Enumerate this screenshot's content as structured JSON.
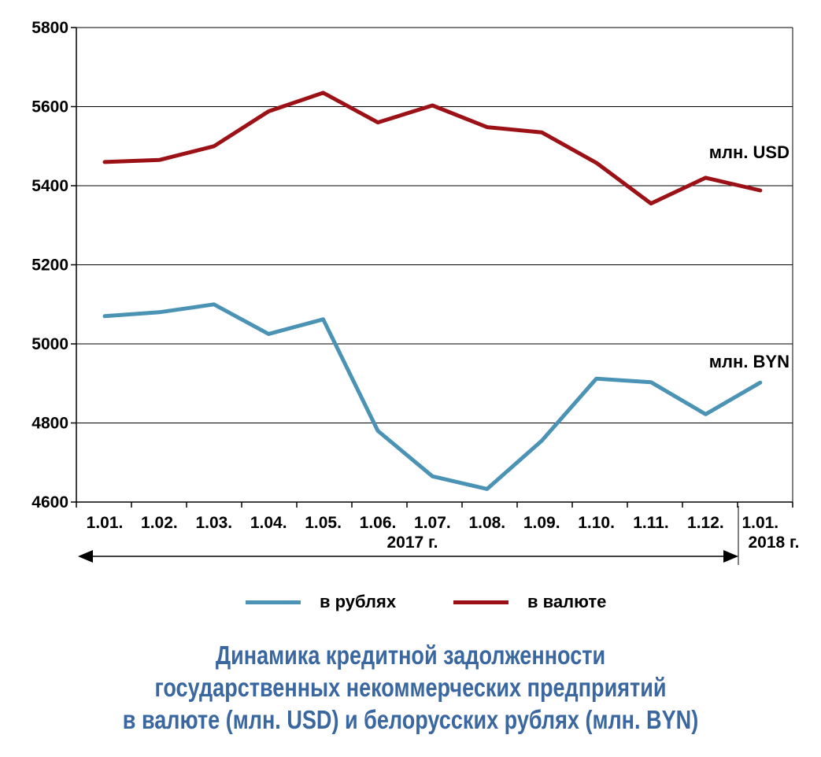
{
  "chart_data": {
    "type": "line",
    "categories": [
      "1.01.",
      "1.02.",
      "1.03.",
      "1.04.",
      "1.05.",
      "1.06.",
      "1.07.",
      "1.08.",
      "1.09.",
      "1.10.",
      "1.11.",
      "1.12.",
      "1.01."
    ],
    "year_labels": [
      "2017 г.",
      "2018 г."
    ],
    "series": [
      {
        "name": "в рублях",
        "tag": "млн. BYN",
        "color": "#4a93b4",
        "values": [
          5070,
          5080,
          5100,
          5025,
          5062,
          4780,
          4665,
          4633,
          4755,
          4912,
          4903,
          4822,
          4902
        ]
      },
      {
        "name": "в валюте",
        "tag": "млн. USD",
        "color": "#9b1116",
        "values": [
          5460,
          5465,
          5500,
          5588,
          5635,
          5560,
          5603,
          5548,
          5535,
          5458,
          5355,
          5420,
          5388
        ]
      }
    ],
    "yticks": [
      "5800",
      "5600",
      "5400",
      "5200",
      "5000",
      "4800",
      "4600"
    ],
    "ylim": [
      4600,
      5800
    ],
    "grid": true,
    "legend_position": "bottom",
    "title_lines": [
      "Динамика кредитной задолженности",
      "государственных некоммерческих предприятий",
      "в валюте (млн. USD) и белорусских рублях (млн. BYN)"
    ]
  }
}
